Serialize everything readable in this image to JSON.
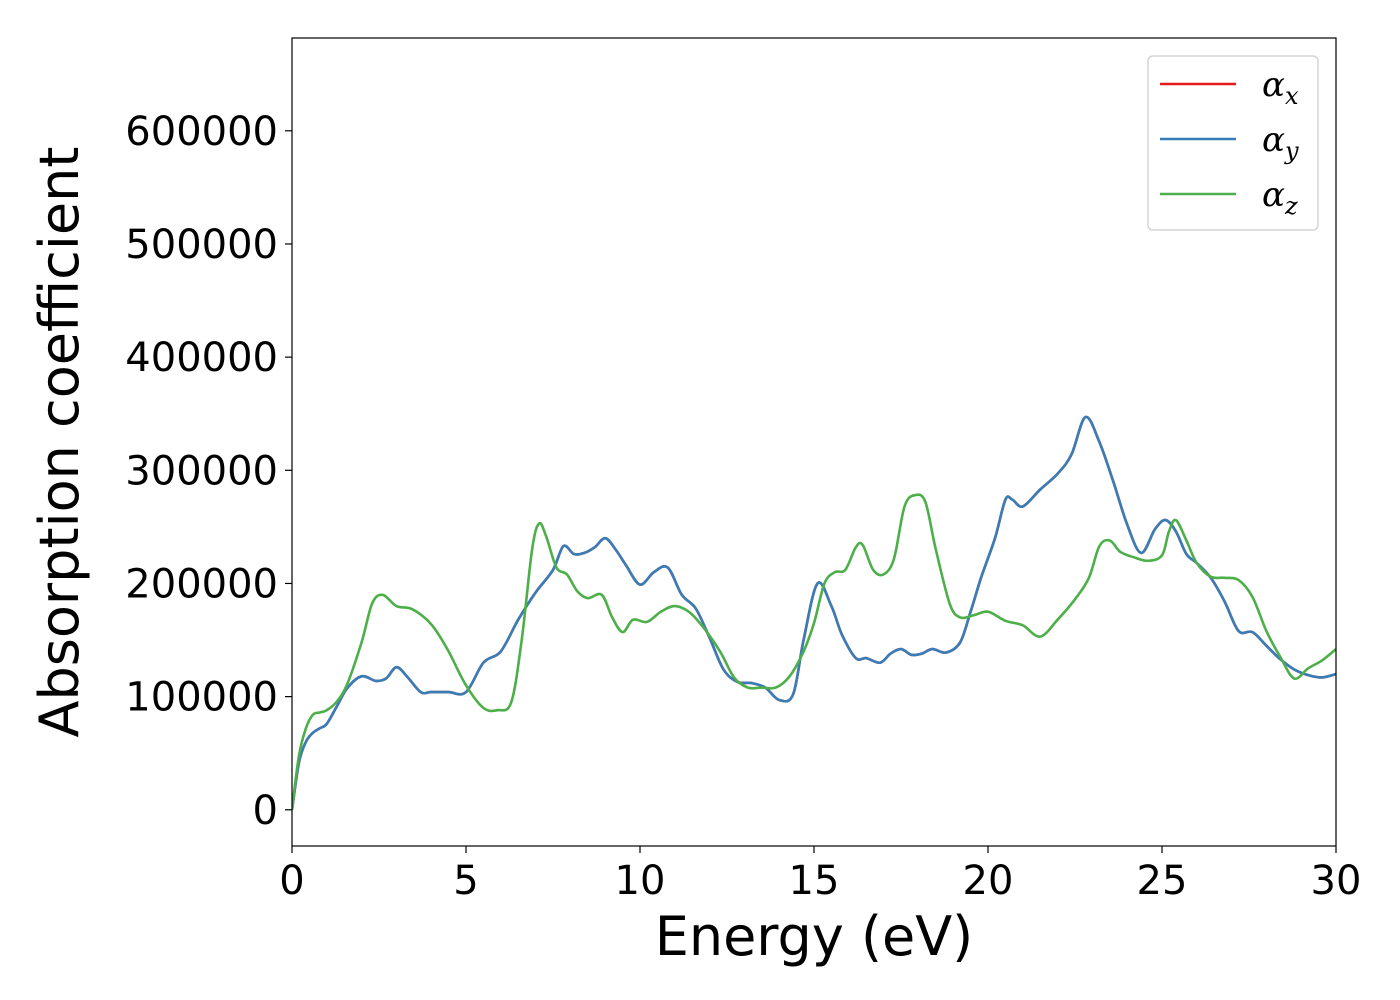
{
  "chart_data": {
    "type": "line",
    "title": "",
    "xlabel": "Energy (eV)",
    "ylabel": "Absorption coefficient",
    "xlim": [
      0,
      30
    ],
    "ylim": [
      -32000,
      682000
    ],
    "xticks": [
      0,
      5,
      10,
      15,
      20,
      25,
      30
    ],
    "yticks": [
      0,
      100000,
      200000,
      300000,
      400000,
      500000,
      600000
    ],
    "grid": false,
    "legend_position": "top-right",
    "series": [
      {
        "name": "x",
        "legend_symbol": "α",
        "legend_subscript": "x",
        "color": "#e41a1c",
        "x": [
          0,
          0.2,
          0.4,
          0.6,
          0.8,
          1.0,
          1.3,
          1.6,
          2.0,
          2.4,
          2.7,
          3.0,
          3.3,
          3.7,
          4.0,
          4.5,
          5.0,
          5.5,
          6.0,
          6.5,
          7.0,
          7.5,
          7.8,
          8.1,
          8.4,
          8.7,
          9.0,
          9.3,
          9.6,
          10.0,
          10.4,
          10.8,
          11.2,
          11.6,
          12.0,
          12.4,
          12.8,
          13.2,
          13.6,
          14.0,
          14.4,
          14.7,
          15.1,
          15.5,
          15.8,
          16.2,
          16.5,
          16.9,
          17.2,
          17.5,
          17.8,
          18.1,
          18.4,
          18.8,
          19.2,
          19.5,
          19.8,
          20.2,
          20.5,
          20.7,
          21.0,
          21.5,
          22.0,
          22.4,
          22.8,
          23.2,
          23.6,
          24.0,
          24.4,
          24.8,
          25.1,
          25.4,
          25.7,
          26.0,
          26.4,
          26.8,
          27.2,
          27.6,
          28.0,
          28.4,
          28.8,
          29.2,
          29.6,
          30.0
        ],
        "y": [
          0,
          42000,
          60000,
          68000,
          72000,
          76000,
          92000,
          108000,
          118000,
          114000,
          116000,
          126000,
          118000,
          104000,
          104000,
          104000,
          104000,
          130000,
          140000,
          168000,
          192000,
          212000,
          233000,
          226000,
          227000,
          232000,
          240000,
          230000,
          216000,
          199000,
          210000,
          214000,
          190000,
          178000,
          152000,
          124000,
          113000,
          112000,
          108000,
          97000,
          102000,
          150000,
          200000,
          180000,
          155000,
          134000,
          134000,
          130000,
          138000,
          142000,
          137000,
          138000,
          142000,
          139000,
          148000,
          175000,
          205000,
          240000,
          274000,
          274000,
          268000,
          283000,
          297000,
          314000,
          347000,
          325000,
          290000,
          252000,
          227000,
          248000,
          256000,
          246000,
          226000,
          218000,
          205000,
          184000,
          158000,
          157000,
          145000,
          133000,
          124000,
          119000,
          117000,
          120000
        ]
      },
      {
        "name": "y",
        "legend_symbol": "α",
        "legend_subscript": "y",
        "color": "#377eb8",
        "x": [
          0,
          0.2,
          0.4,
          0.6,
          0.8,
          1.0,
          1.3,
          1.6,
          2.0,
          2.4,
          2.7,
          3.0,
          3.3,
          3.7,
          4.0,
          4.5,
          5.0,
          5.5,
          6.0,
          6.5,
          7.0,
          7.5,
          7.8,
          8.1,
          8.4,
          8.7,
          9.0,
          9.3,
          9.6,
          10.0,
          10.4,
          10.8,
          11.2,
          11.6,
          12.0,
          12.4,
          12.8,
          13.2,
          13.6,
          14.0,
          14.4,
          14.7,
          15.1,
          15.5,
          15.8,
          16.2,
          16.5,
          16.9,
          17.2,
          17.5,
          17.8,
          18.1,
          18.4,
          18.8,
          19.2,
          19.5,
          19.8,
          20.2,
          20.5,
          20.7,
          21.0,
          21.5,
          22.0,
          22.4,
          22.8,
          23.2,
          23.6,
          24.0,
          24.4,
          24.8,
          25.1,
          25.4,
          25.7,
          26.0,
          26.4,
          26.8,
          27.2,
          27.6,
          28.0,
          28.4,
          28.8,
          29.2,
          29.6,
          30.0
        ],
        "y": [
          0,
          42000,
          60000,
          68000,
          72000,
          76000,
          92000,
          108000,
          118000,
          114000,
          116000,
          126000,
          118000,
          104000,
          104000,
          104000,
          104000,
          130000,
          140000,
          168000,
          192000,
          212000,
          233000,
          226000,
          227000,
          232000,
          240000,
          230000,
          216000,
          199000,
          210000,
          214000,
          190000,
          178000,
          152000,
          124000,
          113000,
          112000,
          108000,
          97000,
          102000,
          150000,
          200000,
          180000,
          155000,
          134000,
          134000,
          130000,
          138000,
          142000,
          137000,
          138000,
          142000,
          139000,
          148000,
          175000,
          205000,
          240000,
          274000,
          274000,
          268000,
          283000,
          297000,
          314000,
          347000,
          325000,
          290000,
          252000,
          227000,
          248000,
          256000,
          246000,
          226000,
          218000,
          205000,
          184000,
          158000,
          157000,
          145000,
          133000,
          124000,
          119000,
          117000,
          120000
        ]
      },
      {
        "name": "z",
        "legend_symbol": "α",
        "legend_subscript": "z",
        "color": "#4daf4a",
        "x": [
          0,
          0.2,
          0.4,
          0.6,
          0.8,
          1.0,
          1.3,
          1.6,
          2.0,
          2.3,
          2.6,
          3.0,
          3.4,
          3.8,
          4.1,
          4.5,
          5.0,
          5.5,
          5.9,
          6.3,
          6.6,
          6.9,
          7.1,
          7.3,
          7.6,
          7.9,
          8.2,
          8.5,
          8.9,
          9.2,
          9.5,
          9.8,
          10.2,
          10.6,
          11.0,
          11.4,
          11.8,
          12.3,
          12.7,
          13.1,
          13.5,
          13.9,
          14.3,
          14.7,
          15.0,
          15.3,
          15.6,
          15.9,
          16.2,
          16.4,
          16.7,
          17.0,
          17.3,
          17.6,
          17.9,
          18.2,
          18.5,
          18.9,
          19.2,
          19.6,
          20.0,
          20.5,
          21.0,
          21.5,
          22.0,
          22.5,
          22.9,
          23.2,
          23.5,
          23.8,
          24.2,
          24.6,
          25.0,
          25.2,
          25.4,
          25.7,
          26.0,
          26.4,
          26.8,
          27.2,
          27.6,
          28.0,
          28.4,
          28.8,
          29.2,
          29.6,
          30.0
        ],
        "y": [
          0,
          48000,
          72000,
          84000,
          86000,
          88000,
          96000,
          112000,
          148000,
          182000,
          190000,
          180000,
          178000,
          170000,
          160000,
          140000,
          110000,
          90000,
          88000,
          95000,
          150000,
          230000,
          253000,
          242000,
          214000,
          208000,
          193000,
          187000,
          190000,
          170000,
          157000,
          168000,
          166000,
          175000,
          180000,
          175000,
          162000,
          140000,
          117000,
          108000,
          108000,
          108000,
          118000,
          140000,
          165000,
          200000,
          210000,
          212000,
          232000,
          234000,
          212000,
          208000,
          222000,
          268000,
          278000,
          272000,
          230000,
          182000,
          170000,
          172000,
          175000,
          167000,
          163000,
          153000,
          168000,
          186000,
          205000,
          233000,
          238000,
          228000,
          223000,
          220000,
          225000,
          246000,
          256000,
          238000,
          218000,
          206000,
          205000,
          203000,
          188000,
          158000,
          135000,
          116000,
          125000,
          132000,
          142000
        ]
      }
    ]
  }
}
